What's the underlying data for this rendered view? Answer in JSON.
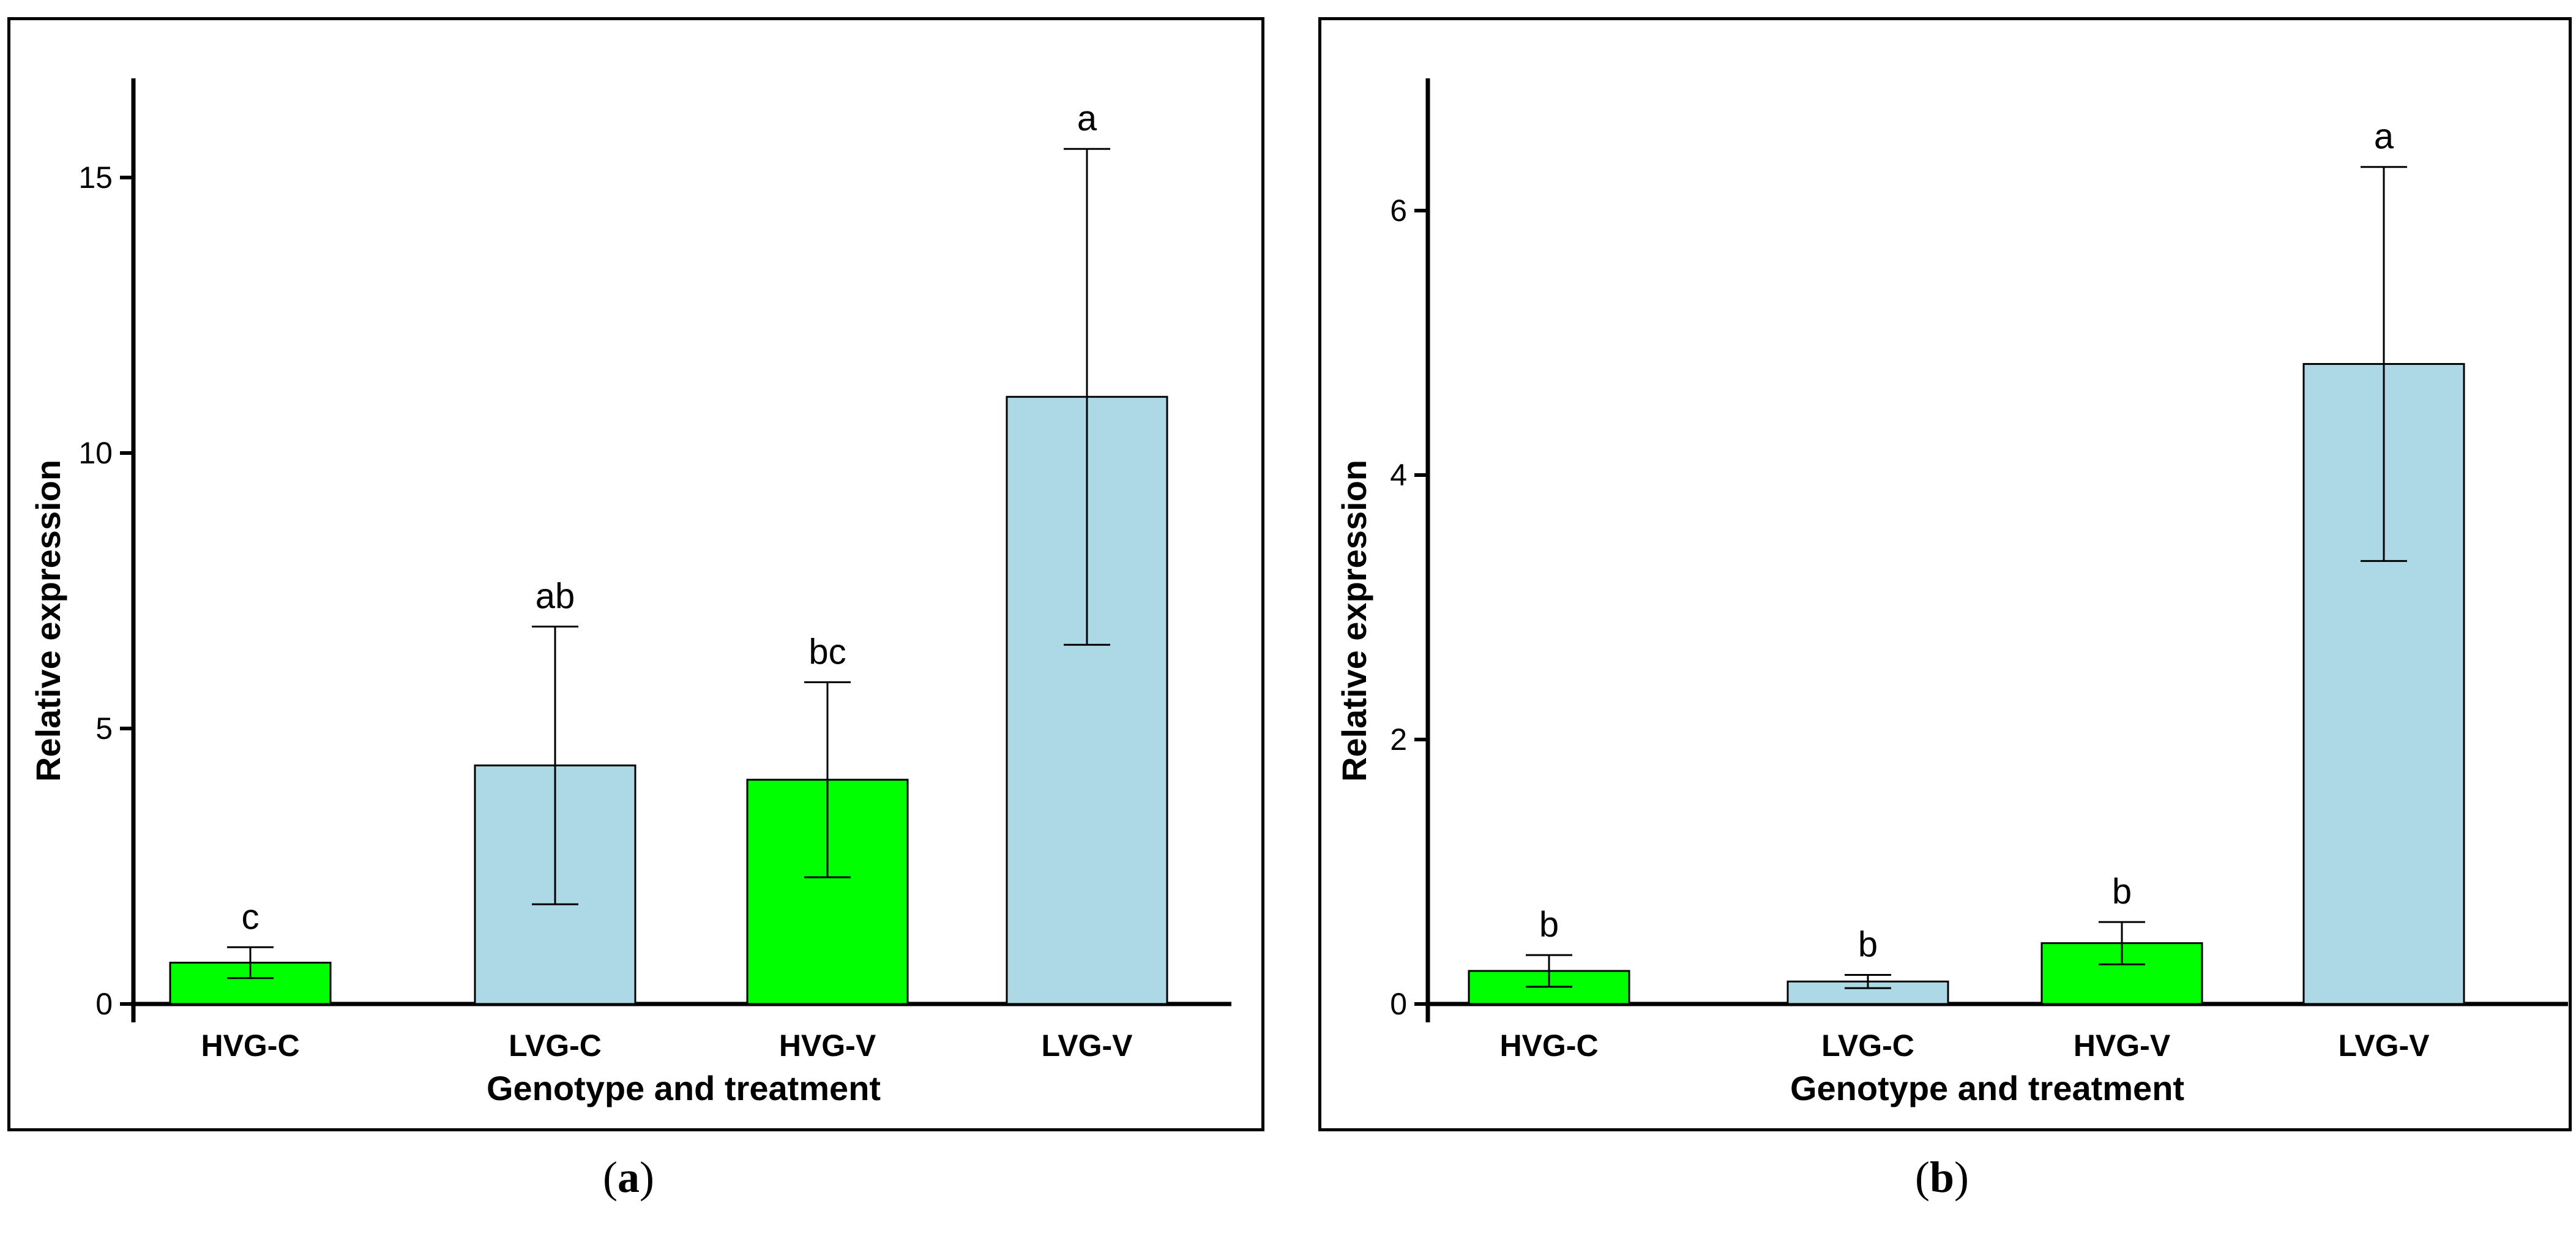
{
  "figure_colors": {
    "green": "#00ff00",
    "blue": "#add8e6",
    "line": "#000000"
  },
  "chart_data": [
    {
      "panel": "a",
      "caption": {
        "open": "(",
        "letter": "a",
        "close": ")"
      },
      "type": "bar",
      "xlabel": "Genotype and treatment",
      "ylabel": "Relative expression",
      "ylim": [
        0,
        16.8
      ],
      "yticks": [
        0,
        5,
        10,
        15
      ],
      "categories": [
        "HVG-C",
        "LVG-C",
        "HVG-V",
        "LVG-V"
      ],
      "values": [
        0.75,
        4.33,
        4.07,
        11.02
      ],
      "errors": [
        0.28,
        2.52,
        1.77,
        4.5
      ],
      "letters": [
        "c",
        "ab",
        "bc",
        "a"
      ],
      "bar_colors": [
        "#00ff00",
        "#add8e6",
        "#00ff00",
        "#add8e6"
      ]
    },
    {
      "panel": "b",
      "caption": {
        "open": "(",
        "letter": "b",
        "close": ")"
      },
      "type": "bar",
      "xlabel": "Genotype and treatment",
      "ylabel": "Relative expression",
      "ylim": [
        0,
        7.0
      ],
      "yticks": [
        0,
        2,
        4,
        6
      ],
      "categories": [
        "HVG-C",
        "LVG-C",
        "HVG-V",
        "LVG-V"
      ],
      "values": [
        0.25,
        0.17,
        0.46,
        4.84
      ],
      "errors": [
        0.12,
        0.05,
        0.16,
        1.49
      ],
      "letters": [
        "b",
        "b",
        "b",
        "a"
      ],
      "bar_colors": [
        "#00ff00",
        "#add8e6",
        "#00ff00",
        "#add8e6"
      ]
    }
  ]
}
